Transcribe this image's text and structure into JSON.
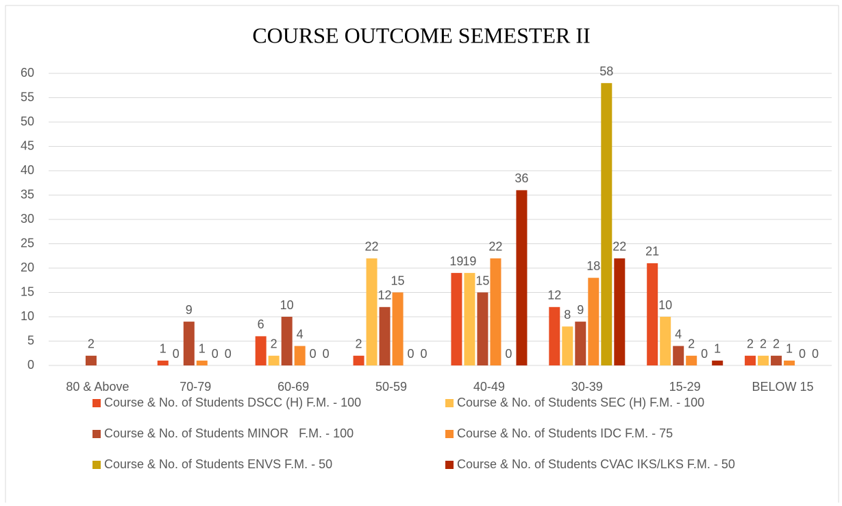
{
  "chart_data": {
    "type": "bar",
    "title": "COURSE OUTCOME SEMESTER II",
    "categories": [
      "80 & Above",
      "70-79",
      "60-69",
      "50-59",
      "40-49",
      "30-39",
      "15-29",
      "BELOW 15"
    ],
    "series": [
      {
        "name": "Course & No. of Students DSCC (H) F.M. - 100",
        "color": "#e84c22",
        "values": [
          null,
          1,
          6,
          2,
          19,
          12,
          21,
          2
        ]
      },
      {
        "name": "Course & No. of Students SEC (H) F.M. - 100",
        "color": "#ffc04d",
        "values": [
          null,
          0,
          2,
          22,
          19,
          8,
          10,
          2
        ]
      },
      {
        "name": "Course & No. of Students MINOR   F.M. - 100",
        "color": "#b84b2c",
        "values": [
          2,
          9,
          10,
          12,
          15,
          9,
          4,
          2
        ]
      },
      {
        "name": "Course & No. of Students IDC F.M. - 75",
        "color": "#f98c2d",
        "values": [
          null,
          1,
          4,
          15,
          22,
          18,
          2,
          1
        ]
      },
      {
        "name": "Course & No. of Students ENVS F.M. - 50",
        "color": "#c9a20a",
        "values": [
          null,
          0,
          0,
          0,
          0,
          58,
          0,
          0
        ]
      },
      {
        "name": "Course & No. of Students CVAC IKS/LKS F.M. - 50",
        "color": "#b22800",
        "values": [
          null,
          0,
          0,
          0,
          36,
          22,
          1,
          0
        ]
      }
    ],
    "ylim": [
      0,
      60
    ],
    "yticks": [
      0,
      5,
      10,
      15,
      20,
      25,
      30,
      35,
      40,
      45,
      50,
      55,
      60
    ],
    "grid": true
  }
}
